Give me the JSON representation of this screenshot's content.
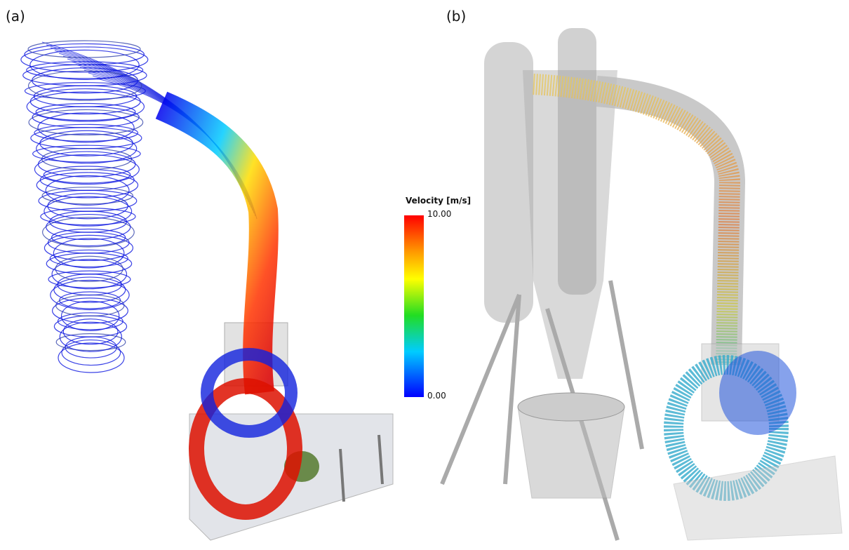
{
  "panels": [
    {
      "label": "(a)"
    },
    {
      "label": "(b)"
    }
  ],
  "colorbar": {
    "title": "Velocity [m/s]",
    "max_label": "10.00",
    "min_label": "0.00"
  }
}
